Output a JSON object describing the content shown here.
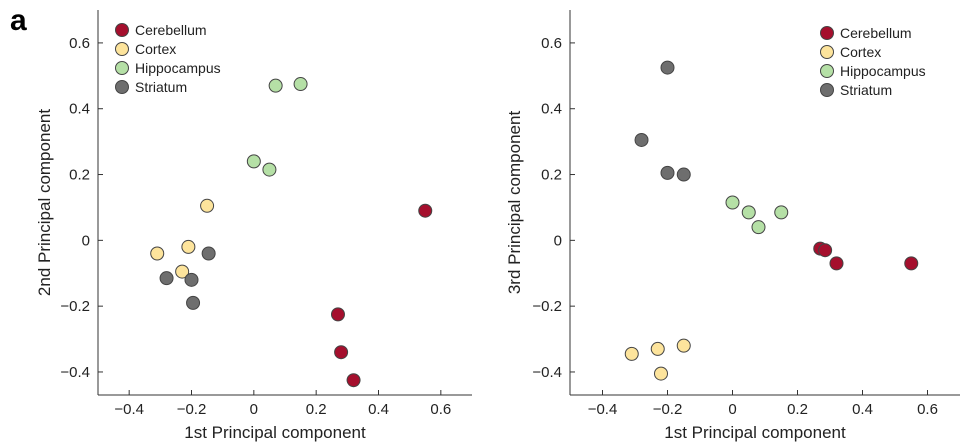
{
  "figure_label": "a",
  "colors": {
    "Cerebellum": "#a50f2d",
    "Cortex": "#fde49c",
    "Hippocampus": "#b5e0a6",
    "Striatum": "#6e6e6e"
  },
  "chart_data": [
    {
      "type": "scatter",
      "xlabel": "1st Principal component",
      "ylabel": "2nd Principal component",
      "xlim": [
        -0.5,
        0.7
      ],
      "ylim": [
        -0.47,
        0.7
      ],
      "xticks": [
        -0.4,
        -0.2,
        0,
        0.2,
        0.4,
        0.6
      ],
      "xtick_labels": [
        "−0.4",
        "−0.2",
        "0",
        "0.2",
        "0.4",
        "0.6"
      ],
      "yticks": [
        -0.4,
        -0.2,
        0,
        0.2,
        0.4,
        0.6
      ],
      "ytick_labels": [
        "−0.4",
        "−0.2",
        "0",
        "0.2",
        "0.4",
        "0.6"
      ],
      "legend_position": "top-left",
      "series": [
        {
          "name": "Cerebellum",
          "points": [
            [
              0.55,
              0.09
            ],
            [
              0.27,
              -0.225
            ],
            [
              0.28,
              -0.34
            ],
            [
              0.32,
              -0.425
            ]
          ]
        },
        {
          "name": "Cortex",
          "points": [
            [
              -0.15,
              0.105
            ],
            [
              -0.31,
              -0.04
            ],
            [
              -0.21,
              -0.02
            ],
            [
              -0.23,
              -0.095
            ]
          ]
        },
        {
          "name": "Hippocampus",
          "points": [
            [
              0.07,
              0.47
            ],
            [
              0.15,
              0.475
            ],
            [
              0.0,
              0.24
            ],
            [
              0.05,
              0.215
            ]
          ]
        },
        {
          "name": "Striatum",
          "points": [
            [
              -0.145,
              -0.04
            ],
            [
              -0.28,
              -0.115
            ],
            [
              -0.2,
              -0.12
            ],
            [
              -0.195,
              -0.19
            ]
          ]
        }
      ]
    },
    {
      "type": "scatter",
      "xlabel": "1st Principal component",
      "ylabel": "3rd Principal component",
      "xlim": [
        -0.5,
        0.7
      ],
      "ylim": [
        -0.47,
        0.7
      ],
      "xticks": [
        -0.4,
        -0.2,
        0,
        0.2,
        0.4,
        0.6
      ],
      "xtick_labels": [
        "−0.4",
        "−0.2",
        "0",
        "0.2",
        "0.4",
        "0.6"
      ],
      "yticks": [
        -0.4,
        -0.2,
        0,
        0.2,
        0.4,
        0.6
      ],
      "ytick_labels": [
        "−0.4",
        "−0.2",
        "0",
        "0.2",
        "0.4",
        "0.6"
      ],
      "legend_position": "top-right",
      "series": [
        {
          "name": "Cerebellum",
          "points": [
            [
              0.27,
              -0.025
            ],
            [
              0.285,
              -0.03
            ],
            [
              0.32,
              -0.07
            ],
            [
              0.55,
              -0.07
            ]
          ]
        },
        {
          "name": "Cortex",
          "points": [
            [
              -0.31,
              -0.345
            ],
            [
              -0.23,
              -0.33
            ],
            [
              -0.15,
              -0.32
            ],
            [
              -0.22,
              -0.405
            ]
          ]
        },
        {
          "name": "Hippocampus",
          "points": [
            [
              0.0,
              0.115
            ],
            [
              0.05,
              0.085
            ],
            [
              0.08,
              0.04
            ],
            [
              0.15,
              0.085
            ]
          ]
        },
        {
          "name": "Striatum",
          "points": [
            [
              -0.2,
              0.525
            ],
            [
              -0.28,
              0.305
            ],
            [
              -0.2,
              0.205
            ],
            [
              -0.15,
              0.2
            ]
          ]
        }
      ]
    }
  ]
}
